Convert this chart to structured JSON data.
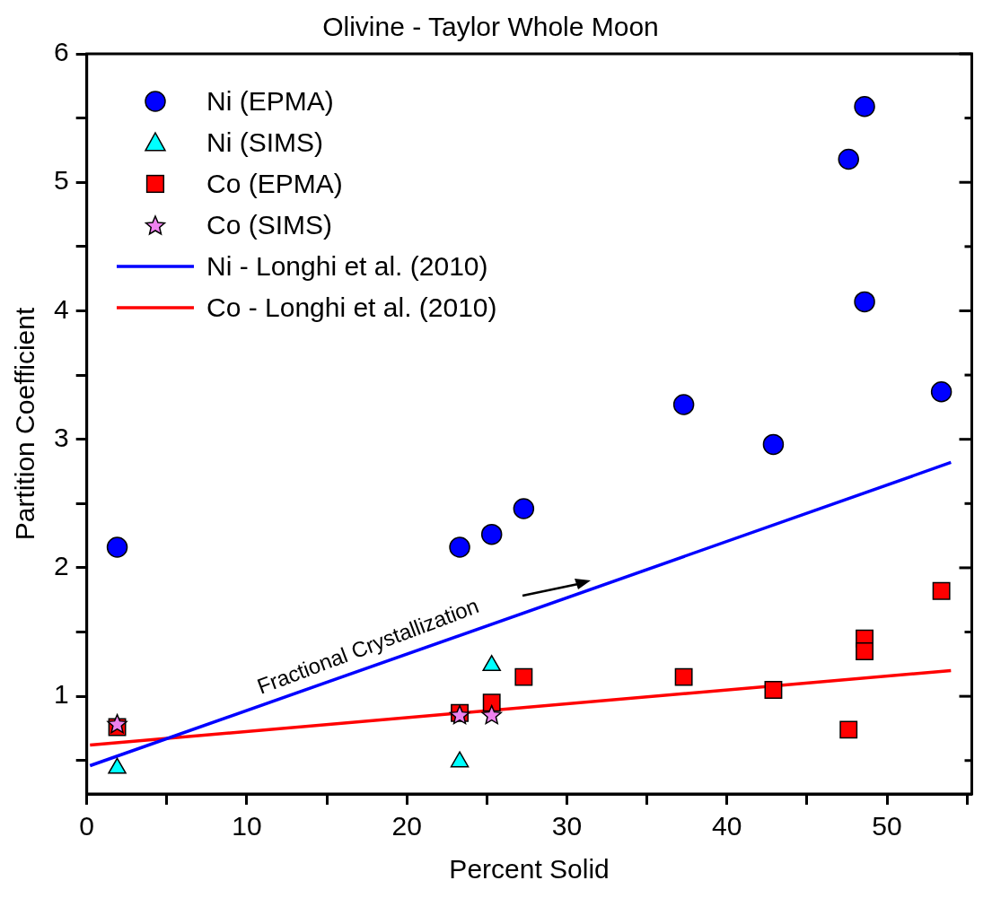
{
  "chart_data": {
    "type": "scatter",
    "title": "Olivine - Taylor Whole Moon",
    "xlabel": "Percent Solid",
    "ylabel": "Partition Coefficient",
    "xlim": [
      0,
      55.3
    ],
    "xticks": [
      0,
      {
        "value": 5,
        "label": null
      },
      10,
      {
        "value": 15,
        "label": null
      },
      20,
      {
        "value": 25,
        "label": null
      },
      30,
      {
        "value": 35,
        "label": null
      },
      40,
      {
        "value": 45,
        "label": null
      },
      50,
      {
        "value": 55,
        "label": null
      }
    ],
    "ylim": [
      0.24,
      6
    ],
    "yticks": [
      {
        "value": 0.5,
        "label": null
      },
      1,
      {
        "value": 1.5,
        "label": null
      },
      2,
      {
        "value": 2.5,
        "label": null
      },
      3,
      {
        "value": 3.5,
        "label": null
      },
      4,
      {
        "value": 4.5,
        "label": null
      },
      5,
      {
        "value": 5.5,
        "label": null
      },
      6
    ],
    "grid": false,
    "legend": "top left",
    "annotations": [
      "Fractional Crystallization"
    ],
    "series": [
      {
        "name": "Ni (EPMA)",
        "type": "scatter",
        "marker": "circle",
        "color": "#0000ff",
        "x": [
          1.9,
          23.3,
          25.3,
          27.3,
          37.3,
          42.9,
          47.6,
          48.6,
          48.6,
          53.4
        ],
        "values": [
          2.16,
          2.16,
          2.26,
          2.46,
          3.27,
          2.96,
          5.18,
          5.59,
          4.07,
          3.37
        ]
      },
      {
        "name": "Ni (SIMS)",
        "type": "scatter",
        "marker": "triangle",
        "color": "#00ffff",
        "x": [
          1.9,
          23.3,
          25.3
        ],
        "values": [
          0.44,
          0.49,
          1.24
        ]
      },
      {
        "name": "Co (EPMA)",
        "type": "scatter",
        "marker": "square",
        "color": "#ff0000",
        "x": [
          1.9,
          23.3,
          25.3,
          27.3,
          37.3,
          42.9,
          47.6,
          48.6,
          48.6,
          53.4
        ],
        "values": [
          0.76,
          0.87,
          0.95,
          1.15,
          1.15,
          1.05,
          0.74,
          1.45,
          1.35,
          1.82
        ]
      },
      {
        "name": "Co (SIMS)",
        "type": "scatter",
        "marker": "star",
        "color": "#ee82ee",
        "x": [
          1.9,
          23.3,
          25.3
        ],
        "values": [
          0.78,
          0.85,
          0.85
        ]
      },
      {
        "name": "Ni - Longhi et al. (2010)",
        "type": "line",
        "marker": "none",
        "color": "#0000ff",
        "x": [
          0.2,
          54
        ],
        "values": [
          0.46,
          2.82
        ]
      },
      {
        "name": "Co - Longhi et al. (2010)",
        "type": "line",
        "marker": "none",
        "color": "#ff0000",
        "x": [
          0.2,
          54
        ],
        "values": [
          0.62,
          1.2
        ]
      }
    ]
  }
}
